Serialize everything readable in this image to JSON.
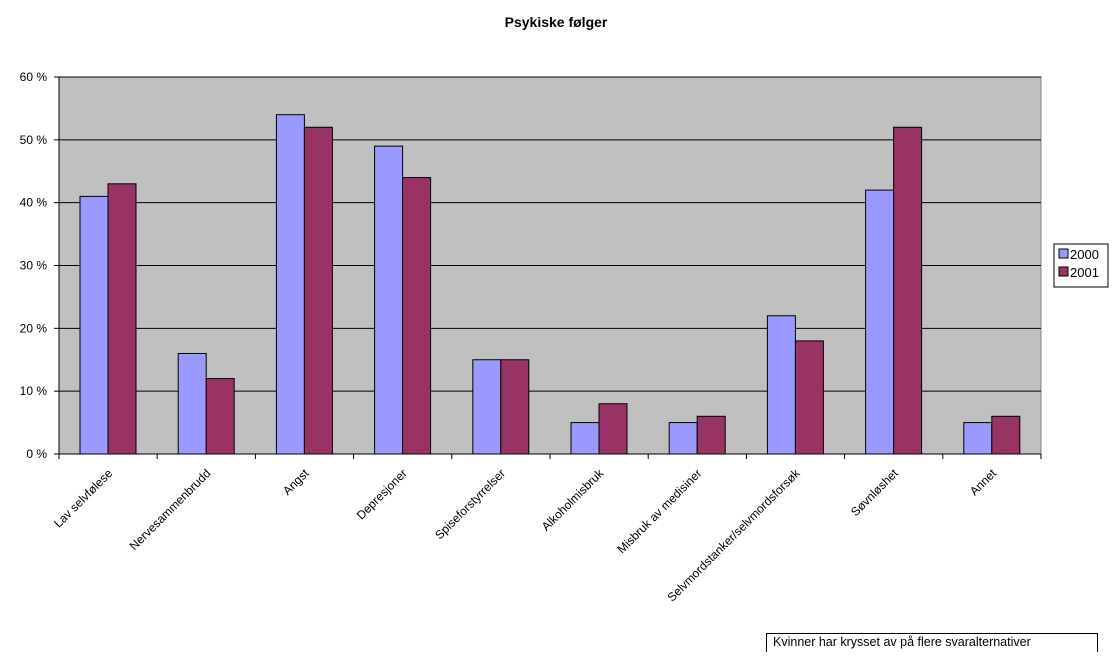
{
  "chart_data": {
    "type": "bar",
    "title": "Psykiske følger",
    "xlabel": "",
    "ylabel": "",
    "ylim": [
      0,
      60
    ],
    "y_ticks": [
      "0 %",
      "10 %",
      "20 %",
      "30 %",
      "40 %",
      "50 %",
      "60 %"
    ],
    "y_tick_values": [
      0,
      10,
      20,
      30,
      40,
      50,
      60
    ],
    "grid": true,
    "legend_position": "right",
    "plot_background": "#c0c0c0",
    "categories": [
      "Lav selvfølese",
      "Nervesammenbrudd",
      "Angst",
      "Depresjoner",
      "Spiseforstyrrelser",
      "Alkoholmisbruk",
      "Misbruk av medisiner",
      "Selvmordstanker/selvmordsforsøk",
      "Søvnløshet",
      "Annet"
    ],
    "series": [
      {
        "name": "2000",
        "color": "#9999ff",
        "values": [
          41,
          16,
          54,
          49,
          15,
          5,
          5,
          22,
          42,
          5
        ]
      },
      {
        "name": "2001",
        "color": "#993366",
        "values": [
          43,
          12,
          52,
          44,
          15,
          8,
          6,
          18,
          52,
          6
        ]
      }
    ],
    "note": "Kvinner har krysset av på flere  svaralternativer"
  }
}
